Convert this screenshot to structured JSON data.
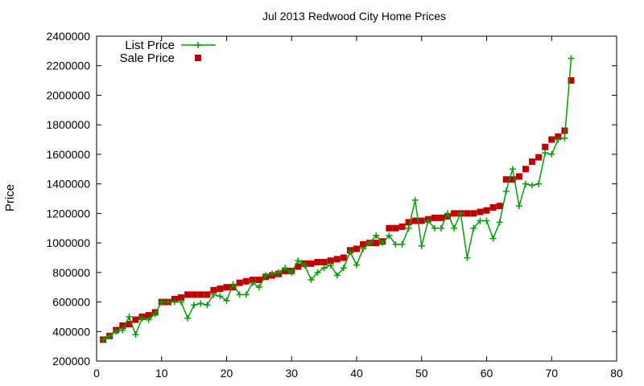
{
  "chart_data": {
    "type": "line",
    "title": "Jul 2013 Redwood City Home Prices",
    "xlabel": "",
    "ylabel": "Price",
    "xlim": [
      0,
      80
    ],
    "ylim": [
      200000,
      2400000
    ],
    "x_ticks": [
      "0",
      "10",
      "20",
      "30",
      "40",
      "50",
      "60",
      "70",
      "80"
    ],
    "y_ticks": [
      "200000",
      "400000",
      "600000",
      "800000",
      "1000000",
      "1200000",
      "1400000",
      "1600000",
      "1800000",
      "2000000",
      "2200000",
      "2400000"
    ],
    "grid": false,
    "legend_position": "top-left",
    "series": [
      {
        "name": "List Price",
        "marker": "plus",
        "color": "#00a000",
        "x": [
          1,
          2,
          3,
          4,
          5,
          6,
          7,
          8,
          9,
          10,
          11,
          12,
          13,
          14,
          15,
          16,
          17,
          18,
          19,
          20,
          21,
          22,
          23,
          24,
          25,
          26,
          27,
          28,
          29,
          30,
          31,
          32,
          33,
          34,
          35,
          36,
          37,
          38,
          39,
          40,
          41,
          42,
          43,
          44,
          45,
          46,
          47,
          48,
          49,
          50,
          51,
          52,
          53,
          54,
          55,
          56,
          57,
          58,
          59,
          60,
          61,
          62,
          63,
          64,
          65,
          66,
          67,
          68,
          69,
          70,
          71,
          72,
          73
        ],
        "y": [
          345000,
          370000,
          400000,
          410000,
          500000,
          380000,
          490000,
          480000,
          520000,
          600000,
          600000,
          600000,
          600000,
          490000,
          580000,
          590000,
          580000,
          650000,
          640000,
          610000,
          720000,
          650000,
          650000,
          730000,
          700000,
          780000,
          790000,
          800000,
          830000,
          800000,
          880000,
          850000,
          750000,
          800000,
          830000,
          850000,
          780000,
          830000,
          940000,
          850000,
          960000,
          1000000,
          1050000,
          1000000,
          1050000,
          990000,
          990000,
          1100000,
          1290000,
          980000,
          1150000,
          1100000,
          1100000,
          1200000,
          1100000,
          1200000,
          900000,
          1100000,
          1150000,
          1150000,
          1030000,
          1140000,
          1350000,
          1500000,
          1250000,
          1400000,
          1390000,
          1400000,
          1610000,
          1600000,
          1700000,
          1710000,
          2250000
        ]
      },
      {
        "name": "Sale Price",
        "marker": "square",
        "color": "#c00000",
        "x": [
          1,
          2,
          3,
          4,
          5,
          6,
          7,
          8,
          9,
          10,
          11,
          12,
          13,
          14,
          15,
          16,
          17,
          18,
          19,
          20,
          21,
          22,
          23,
          24,
          25,
          26,
          27,
          28,
          29,
          30,
          31,
          32,
          33,
          34,
          35,
          36,
          37,
          38,
          39,
          40,
          41,
          42,
          43,
          44,
          45,
          46,
          47,
          48,
          49,
          50,
          51,
          52,
          53,
          54,
          55,
          56,
          57,
          58,
          59,
          60,
          61,
          62,
          63,
          64,
          65,
          66,
          67,
          68,
          69,
          70,
          71,
          72,
          73
        ],
        "y": [
          345000,
          370000,
          410000,
          440000,
          450000,
          480000,
          500000,
          510000,
          530000,
          600000,
          600000,
          620000,
          630000,
          650000,
          650000,
          650000,
          650000,
          680000,
          690000,
          700000,
          700000,
          730000,
          740000,
          750000,
          750000,
          770000,
          780000,
          790000,
          810000,
          810000,
          840000,
          860000,
          860000,
          870000,
          870000,
          880000,
          890000,
          900000,
          950000,
          960000,
          990000,
          1000000,
          1000000,
          1010000,
          1100000,
          1100000,
          1110000,
          1140000,
          1150000,
          1150000,
          1160000,
          1170000,
          1170000,
          1180000,
          1200000,
          1200000,
          1200000,
          1200000,
          1210000,
          1220000,
          1240000,
          1250000,
          1430000,
          1430000,
          1450000,
          1500000,
          1550000,
          1580000,
          1650000,
          1700000,
          1720000,
          1760000,
          2100000
        ]
      }
    ]
  }
}
